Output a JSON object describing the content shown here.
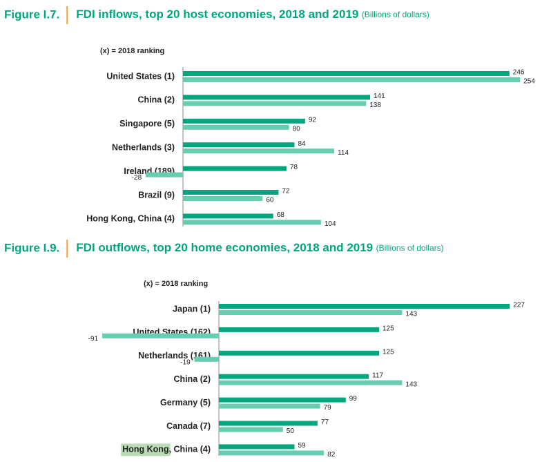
{
  "chart_data": [
    {
      "type": "bar",
      "orientation": "horizontal",
      "figure_label": "Figure I.7.",
      "title": "FDI inflows, top 20 host economies, 2018 and 2019",
      "unit_note": "(Billions of dollars)",
      "note": "(x) = 2018 ranking",
      "categories": [
        "United States (1)",
        "China (2)",
        "Singapore (5)",
        "Netherlands (3)",
        "Ireland (189)",
        "Brazil (9)",
        "Hong Kong, China (4)"
      ],
      "series": [
        {
          "color": "#00a67e",
          "values": [
            246,
            141,
            92,
            84,
            78,
            72,
            68
          ]
        },
        {
          "color": "#66cdb0",
          "values": [
            254,
            138,
            80,
            114,
            -28,
            60,
            104
          ]
        }
      ]
    },
    {
      "type": "bar",
      "orientation": "horizontal",
      "figure_label": "Figure I.9.",
      "title": "FDI outflows, top 20 home economies, 2018 and 2019",
      "unit_note": "(Billions of dollars)",
      "note": "(x) = 2018 ranking",
      "categories": [
        "Japan (1)",
        "United States (162)",
        "Netherlands (161)",
        "China (2)",
        "Germany (5)",
        "Canada (7)",
        "Hong Kong, China (4)"
      ],
      "series": [
        {
          "color": "#00a67e",
          "values": [
            227,
            125,
            125,
            117,
            99,
            77,
            59
          ]
        },
        {
          "color": "#66cdb0",
          "values": [
            143,
            -91,
            -19,
            143,
            79,
            50,
            82
          ]
        }
      ]
    }
  ]
}
